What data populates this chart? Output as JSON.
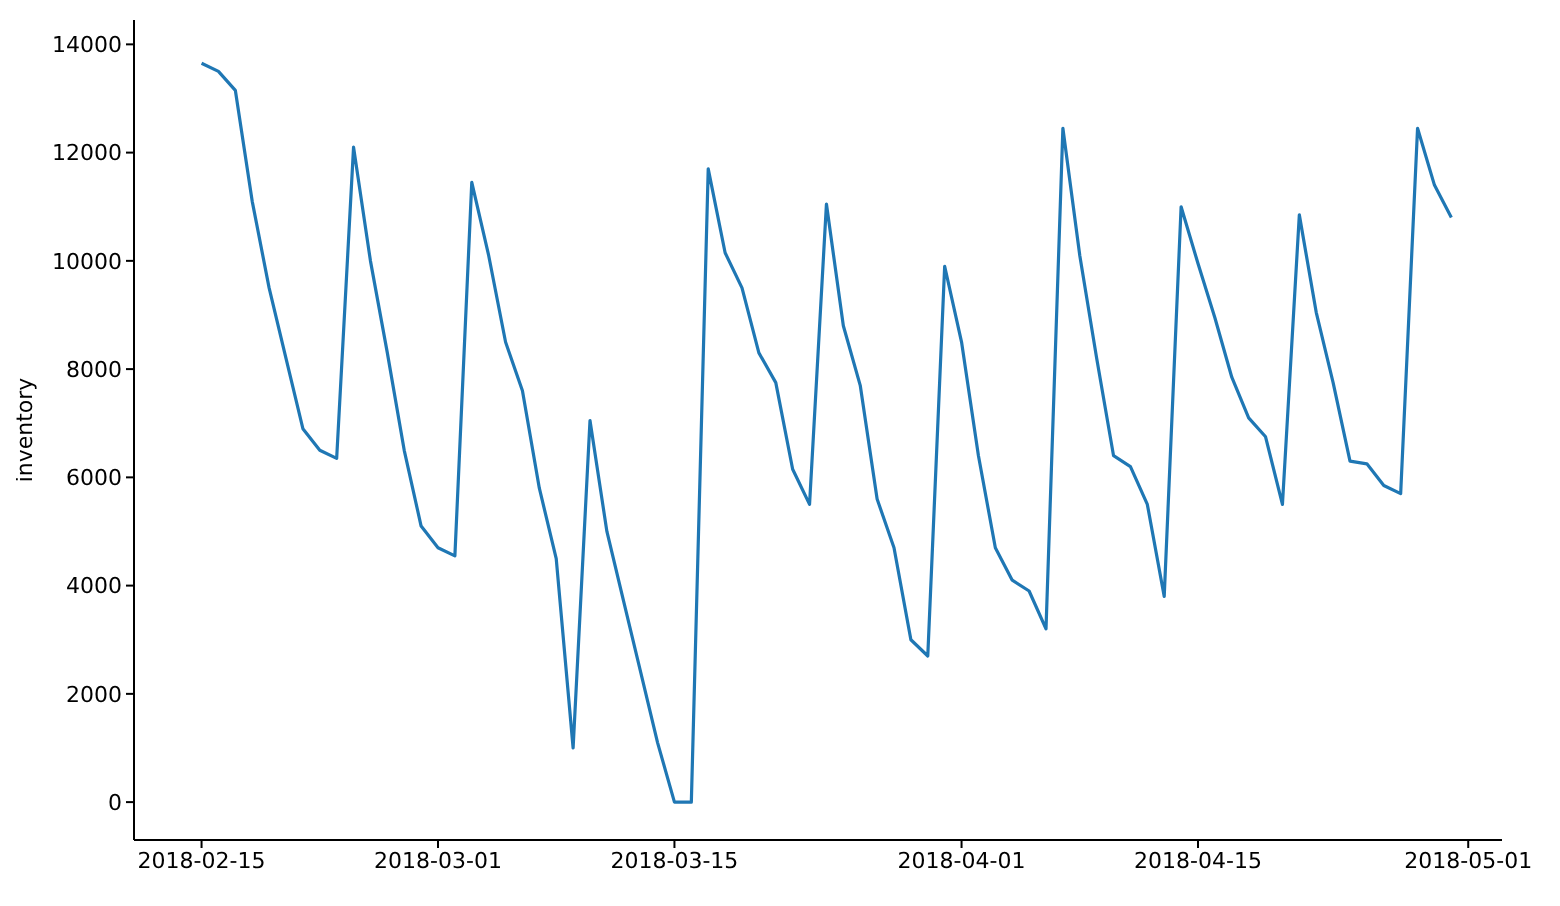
{
  "chart_data": {
    "type": "line",
    "ylabel": "inventory",
    "x": [
      "2018-02-15",
      "2018-02-16",
      "2018-02-17",
      "2018-02-18",
      "2018-02-19",
      "2018-02-20",
      "2018-02-21",
      "2018-02-22",
      "2018-02-23",
      "2018-02-24",
      "2018-02-25",
      "2018-02-26",
      "2018-02-27",
      "2018-02-28",
      "2018-03-01",
      "2018-03-02",
      "2018-03-03",
      "2018-03-04",
      "2018-03-05",
      "2018-03-06",
      "2018-03-07",
      "2018-03-08",
      "2018-03-09",
      "2018-03-10",
      "2018-03-11",
      "2018-03-12",
      "2018-03-13",
      "2018-03-14",
      "2018-03-15",
      "2018-03-16",
      "2018-03-17",
      "2018-03-18",
      "2018-03-19",
      "2018-03-20",
      "2018-03-21",
      "2018-03-22",
      "2018-03-23",
      "2018-03-24",
      "2018-03-25",
      "2018-03-26",
      "2018-03-27",
      "2018-03-28",
      "2018-03-29",
      "2018-03-30",
      "2018-03-31",
      "2018-04-01",
      "2018-04-02",
      "2018-04-03",
      "2018-04-04",
      "2018-04-05",
      "2018-04-06",
      "2018-04-07",
      "2018-04-08",
      "2018-04-09",
      "2018-04-10",
      "2018-04-11",
      "2018-04-12",
      "2018-04-13",
      "2018-04-14",
      "2018-04-15",
      "2018-04-16",
      "2018-04-17",
      "2018-04-18",
      "2018-04-19",
      "2018-04-20",
      "2018-04-21",
      "2018-04-22",
      "2018-04-23",
      "2018-04-24",
      "2018-04-25",
      "2018-04-26",
      "2018-04-27",
      "2018-04-28",
      "2018-04-29",
      "2018-04-30"
    ],
    "series": [
      {
        "color": "#1f77b4",
        "values": [
          13650,
          13500,
          13150,
          11100,
          9500,
          8200,
          6900,
          6500,
          6350,
          12100,
          10000,
          8300,
          6500,
          5100,
          4700,
          4550,
          11450,
          10100,
          8500,
          7600,
          5800,
          4500,
          1000,
          7050,
          5000,
          3700,
          2400,
          1100,
          0,
          0,
          11700,
          10150,
          9500,
          8300,
          7750,
          6150,
          5500,
          11050,
          8800,
          7700,
          5600,
          4700,
          3000,
          2700,
          9900,
          8500,
          6400,
          4700,
          4100,
          3900,
          3200,
          12450,
          10100,
          8200,
          6400,
          6200,
          5500,
          3800,
          11000,
          9950,
          8950,
          7850,
          7100,
          6750,
          5500,
          10850,
          9050,
          7750,
          6300,
          6250,
          5850,
          5700,
          12450,
          11400,
          10800
        ]
      }
    ],
    "xlim": [
      "2018-02-11",
      "2018-05-03"
    ],
    "xticks": [
      "2018-02-15",
      "2018-03-01",
      "2018-03-15",
      "2018-04-01",
      "2018-04-15",
      "2018-05-01"
    ],
    "ylim": [
      -700,
      14450
    ],
    "yticks": [
      0,
      2000,
      4000,
      6000,
      8000,
      10000,
      12000,
      14000
    ],
    "grid": false,
    "legend": false,
    "marker": "none",
    "line_style": "solid"
  }
}
